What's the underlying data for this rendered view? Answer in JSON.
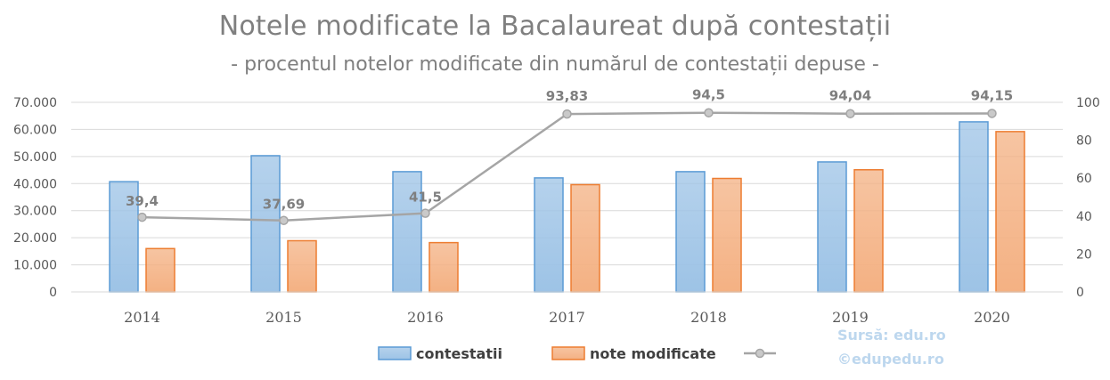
{
  "chart_data": {
    "type": "bar",
    "title": "Notele modificate la Bacalaureat după contestații",
    "subtitle": "- procentul notelor modificate din numărul de contestații depuse -",
    "categories": [
      "2014",
      "2015",
      "2016",
      "2017",
      "2018",
      "2019",
      "2020"
    ],
    "series": [
      {
        "name": "contestatii",
        "type": "bar",
        "axis": "left",
        "color": "#9dc3e6",
        "border": "#5b9bd5",
        "values": [
          40700,
          50300,
          44400,
          42100,
          44400,
          48000,
          62800
        ]
      },
      {
        "name": "note modificate",
        "type": "bar",
        "axis": "left",
        "color": "#f4b183",
        "border": "#ed7d31",
        "values": [
          16000,
          18900,
          18200,
          39600,
          41900,
          45100,
          59200
        ]
      },
      {
        "name": "",
        "type": "line",
        "axis": "right",
        "color": "#a5a5a5",
        "values": [
          39.4,
          37.69,
          41.5,
          93.83,
          94.5,
          94.04,
          94.15
        ],
        "labels": [
          "39,4",
          "37,69",
          "41,5",
          "93,83",
          "94,5",
          "94,04",
          "94,15"
        ]
      }
    ],
    "y_left": {
      "min": 0,
      "max": 70000,
      "ticks": [
        "0",
        "10.000",
        "20.000",
        "30.000",
        "40.000",
        "50.000",
        "60.000",
        "70.000"
      ]
    },
    "y_right": {
      "min": 0,
      "max": 100,
      "ticks": [
        "0",
        "20",
        "40",
        "60",
        "80",
        "100"
      ]
    },
    "grid": true,
    "legend_position": "bottom"
  },
  "source": {
    "line1": "Sursă: edu.ro",
    "line2": "©edupedu.ro"
  }
}
